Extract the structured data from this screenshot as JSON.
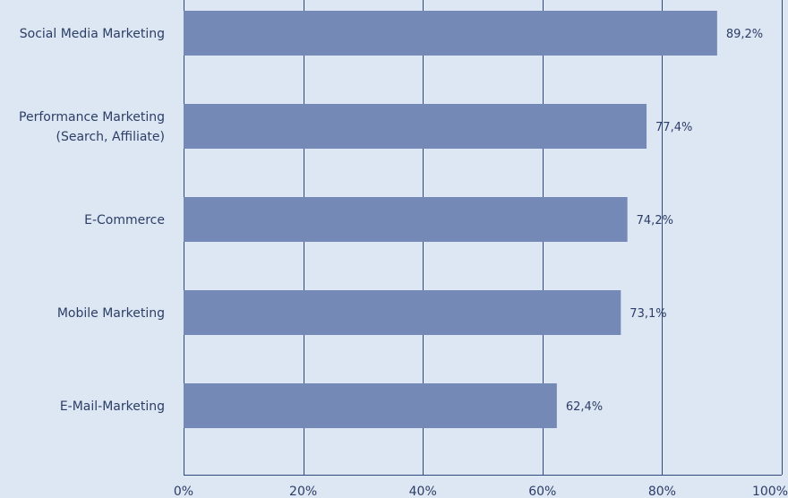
{
  "chart_data": {
    "type": "bar",
    "orientation": "horizontal",
    "categories": [
      [
        "Social Media Marketing"
      ],
      [
        "Performance Marketing",
        "(Search, Affiliate)"
      ],
      [
        "E-Commerce"
      ],
      [
        "Mobile Marketing"
      ],
      [
        "E-Mail-Marketing"
      ]
    ],
    "values": [
      89.2,
      77.4,
      74.2,
      73.1,
      62.4
    ],
    "value_labels": [
      "89,2%",
      "77,4%",
      "74,2%",
      "73,1%",
      "62,4%"
    ],
    "xlim": [
      0,
      100
    ],
    "xticks": [
      0,
      20,
      40,
      60,
      80,
      100
    ],
    "xtick_labels": [
      "0%",
      "20%",
      "40%",
      "60%",
      "80%",
      "100%"
    ],
    "title": "",
    "xlabel": "",
    "ylabel": "",
    "grid": "vertical",
    "colors": {
      "bar": "#7489b5",
      "background": "#dde6f3",
      "grid": "#2f4a7a",
      "text": "#2c3e66"
    }
  }
}
